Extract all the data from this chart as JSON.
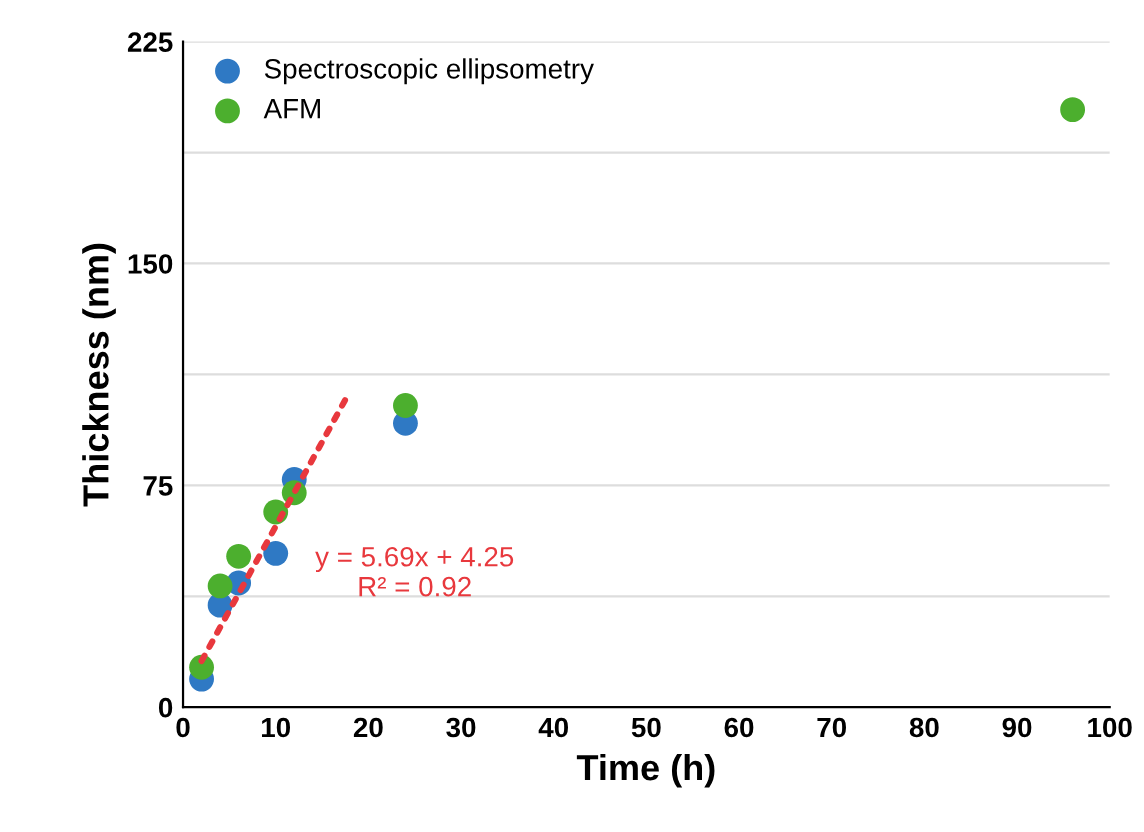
{
  "chart_data": {
    "type": "scatter",
    "xlabel": "Time (h)",
    "ylabel": "Thickness (nm)",
    "xlim": [
      0,
      100
    ],
    "xticks": [
      0,
      10,
      20,
      30,
      40,
      50,
      60,
      70,
      80,
      90,
      100
    ],
    "ylim": [
      0,
      225
    ],
    "yticks": [
      0,
      {
        "value": 37.5,
        "label": null
      },
      75,
      {
        "value": 112.5,
        "label": null
      },
      150,
      {
        "value": 187.5,
        "label": null
      },
      225
    ],
    "grid": "y",
    "legend": "top left",
    "marker": "circle",
    "series": [
      {
        "name": "Spectroscopic ellipsometry",
        "color": "#2f79c4",
        "x": [
          2,
          4,
          6,
          10,
          12,
          24
        ],
        "values": [
          9.5,
          34.5,
          42,
          52,
          77,
          96
        ]
      },
      {
        "name": "AFM",
        "color": "#4caf2e",
        "x": [
          2,
          4,
          6,
          10,
          12,
          24,
          96
        ],
        "values": [
          13.5,
          41,
          51,
          66,
          72.5,
          102,
          202
        ]
      },
      {
        "type": "line",
        "color": "#e8383d",
        "line_style": "dotted",
        "marker": "none",
        "x": [
          2,
          18
        ],
        "values": [
          15.6,
          106.7
        ]
      }
    ],
    "annotations": [
      "y = 5.69x + 4.25\nR² = 0.92"
    ]
  }
}
